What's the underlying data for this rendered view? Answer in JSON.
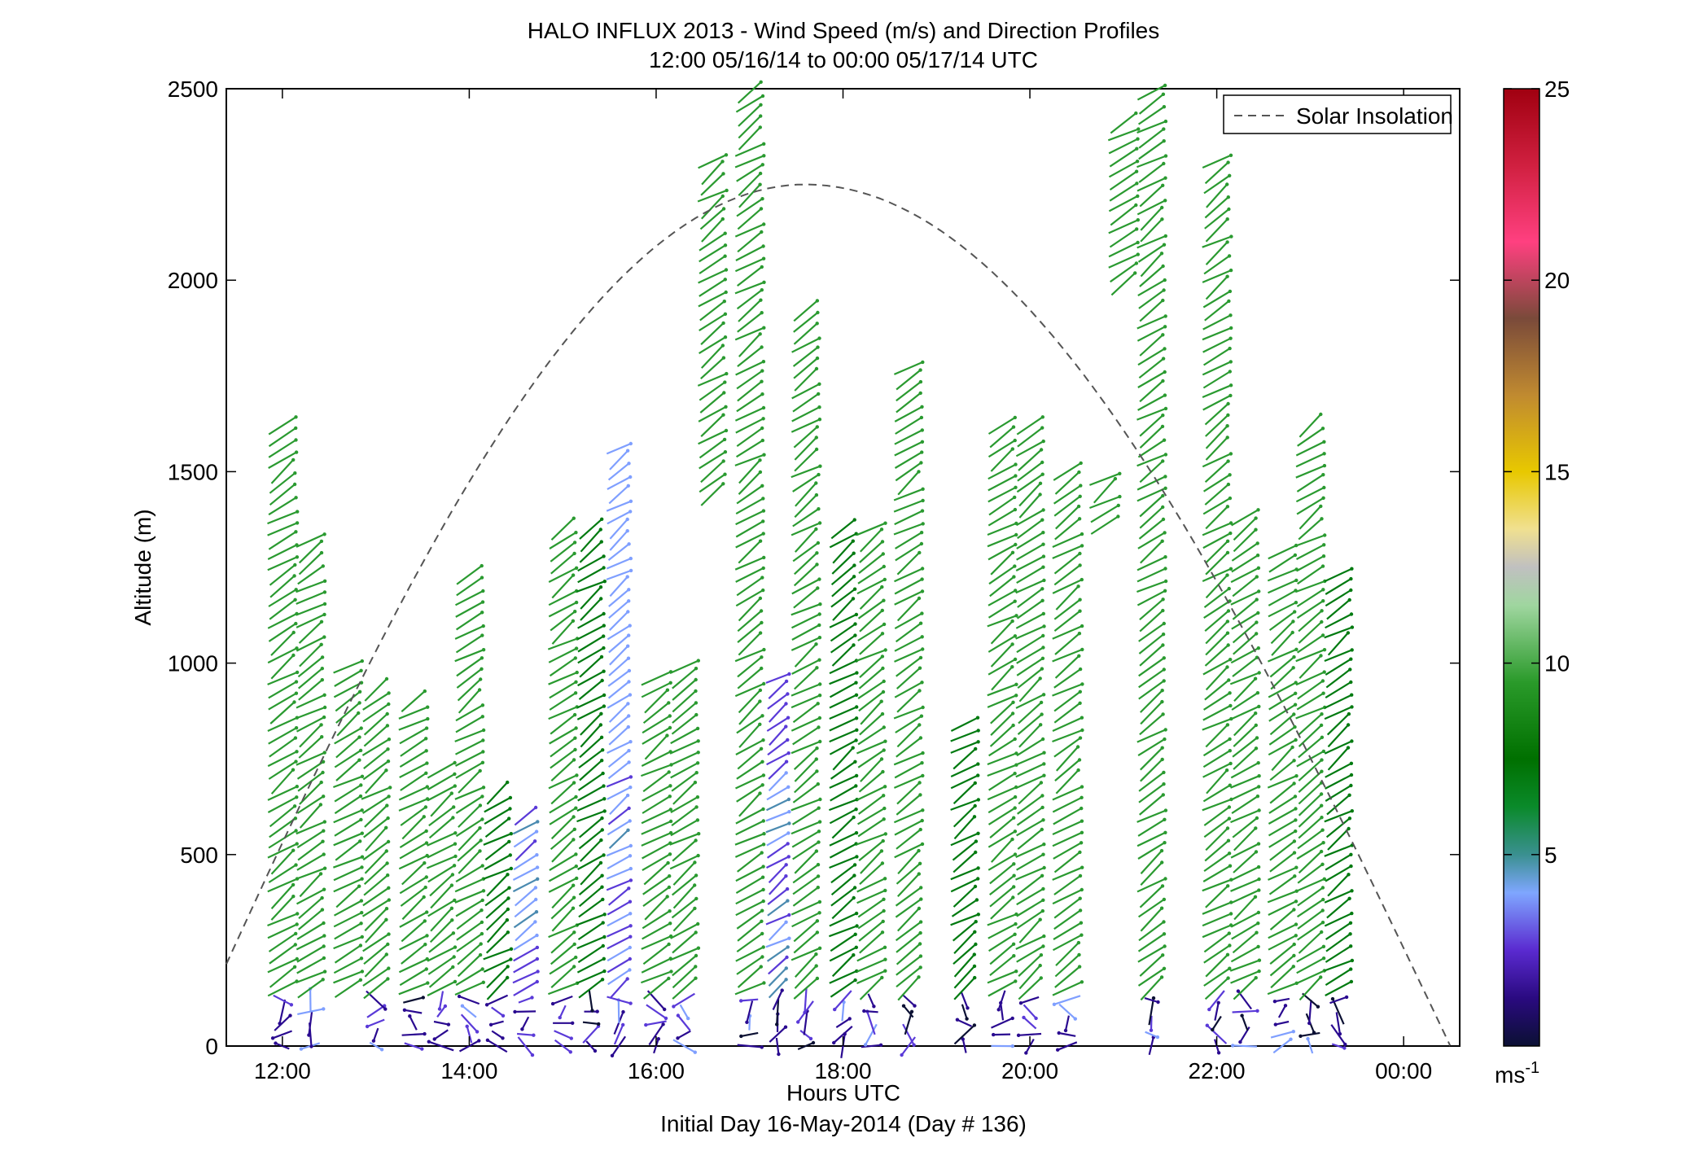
{
  "chart_data": {
    "type": "scatter",
    "title": "HALO INFLUX 2013 - Wind Speed (m/s) and Direction Profiles",
    "subtitle": "12:00 05/16/14 to 00:00 05/17/14  UTC",
    "xlabel": "Hours UTC",
    "xlabel2": "Initial Day 16-May-2014 (Day # 136)",
    "ylabel": "Altitude (m)",
    "xlim_hours": [
      11.4,
      24.6
    ],
    "ylim": [
      0,
      2500
    ],
    "xticks": [
      "12:00",
      "14:00",
      "16:00",
      "18:00",
      "20:00",
      "22:00",
      "00:00"
    ],
    "xtick_hours": [
      12,
      14,
      16,
      18,
      20,
      22,
      24
    ],
    "yticks": [
      0,
      500,
      1000,
      1500,
      2000,
      2500
    ],
    "legend": {
      "label": "Solar Insolation",
      "placement": "top-right",
      "style": "dashed"
    },
    "colorbar": {
      "ticks": [
        5,
        10,
        15,
        20,
        25
      ],
      "min": 0,
      "max": 25,
      "unit_label": "ms",
      "unit_exp": "-1"
    },
    "solar_insolation": {
      "peak_hour": 17.6,
      "peak_altitude_m": 2250,
      "start_hour": 11.4,
      "start_altitude_m": 230,
      "end_hour": 24.5,
      "end_altitude_m": 0
    },
    "wind_barbs": {
      "description": "wind vectors by hour and altitude",
      "profiles": [
        {
          "hour": 12.0,
          "alt_range": [
            0,
            1620
          ],
          "speed": 9
        },
        {
          "hour": 12.3,
          "alt_range": [
            0,
            1330
          ],
          "speed": 8
        },
        {
          "hour": 12.7,
          "alt_range": [
            150,
            1010
          ],
          "speed": 8
        },
        {
          "hour": 13.0,
          "alt_range": [
            0,
            930
          ],
          "speed": 8
        },
        {
          "hour": 13.4,
          "alt_range": [
            0,
            900
          ],
          "speed": 8
        },
        {
          "hour": 13.7,
          "alt_range": [
            0,
            730
          ],
          "speed": 8
        },
        {
          "hour": 14.0,
          "alt_range": [
            0,
            1250
          ],
          "speed": 8
        },
        {
          "hour": 14.3,
          "alt_range": [
            0,
            670
          ],
          "speed": 7
        },
        {
          "hour": 14.6,
          "alt_range": [
            0,
            600
          ],
          "speed": 5
        },
        {
          "hour": 15.0,
          "alt_range": [
            0,
            1370
          ],
          "speed": 8
        },
        {
          "hour": 15.3,
          "alt_range": [
            0,
            1350
          ],
          "speed": 7
        },
        {
          "hour": 15.6,
          "alt_range": [
            0,
            1570
          ],
          "speed": 4
        },
        {
          "hour": 16.0,
          "alt_range": [
            0,
            970
          ],
          "speed": 9
        },
        {
          "hour": 16.3,
          "alt_range": [
            0,
            1010
          ],
          "speed": 8
        },
        {
          "hour": 16.6,
          "alt_range": [
            1440,
            2320
          ],
          "speed": 8
        },
        {
          "hour": 17.0,
          "alt_range": [
            0,
            2490
          ],
          "speed": 8
        },
        {
          "hour": 17.3,
          "alt_range": [
            0,
            960
          ],
          "speed": 3
        },
        {
          "hour": 17.6,
          "alt_range": [
            0,
            1920
          ],
          "speed": 8
        },
        {
          "hour": 18.0,
          "alt_range": [
            0,
            1370
          ],
          "speed": 7
        },
        {
          "hour": 18.3,
          "alt_range": [
            0,
            1370
          ],
          "speed": 8
        },
        {
          "hour": 18.7,
          "alt_range": [
            0,
            1780
          ],
          "speed": 8
        },
        {
          "hour": 19.3,
          "alt_range": [
            0,
            860
          ],
          "speed": 7
        },
        {
          "hour": 19.7,
          "alt_range": [
            0,
            1620
          ],
          "speed": 8
        },
        {
          "hour": 20.0,
          "alt_range": [
            0,
            1620
          ],
          "speed": 8
        },
        {
          "hour": 20.4,
          "alt_range": [
            0,
            1520
          ],
          "speed": 9
        },
        {
          "hour": 20.8,
          "alt_range": [
            1360,
            1490
          ],
          "speed": 9
        },
        {
          "hour": 21.0,
          "alt_range": [
            1990,
            2430
          ],
          "speed": 9
        },
        {
          "hour": 21.3,
          "alt_range": [
            0,
            2500
          ],
          "speed": 8
        },
        {
          "hour": 22.0,
          "alt_range": [
            0,
            2320
          ],
          "speed": 8
        },
        {
          "hour": 22.3,
          "alt_range": [
            0,
            1400
          ],
          "speed": 8
        },
        {
          "hour": 22.7,
          "alt_range": [
            0,
            1290
          ],
          "speed": 8
        },
        {
          "hour": 23.0,
          "alt_range": [
            0,
            1620
          ],
          "speed": 8
        },
        {
          "hour": 23.3,
          "alt_range": [
            0,
            1250
          ],
          "speed": 7
        }
      ]
    }
  }
}
